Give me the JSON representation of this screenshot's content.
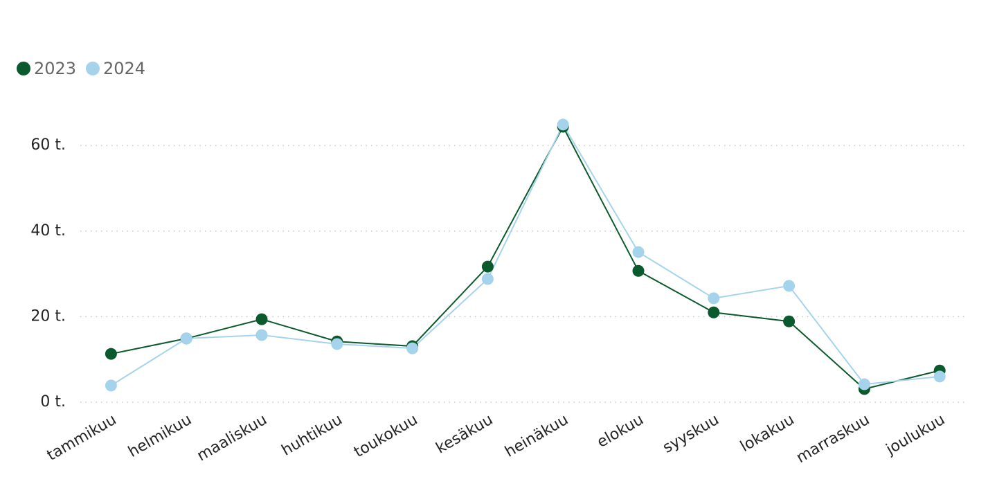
{
  "chart_data": {
    "type": "line",
    "categories": [
      "tammikuu",
      "helmikuu",
      "maaliskuu",
      "huhtikuu",
      "toukokuu",
      "kesäkuu",
      "heinäkuu",
      "elokuu",
      "syyskuu",
      "lokakuu",
      "marraskuu",
      "joulukuu"
    ],
    "series": [
      {
        "name": "2023",
        "color": "#0b5a2e",
        "values": [
          11.3,
          14.9,
          19.4,
          14.2,
          13.1,
          31.7,
          64.4,
          30.7,
          21.0,
          18.9,
          3.1,
          7.4
        ]
      },
      {
        "name": "2024",
        "color": "#a6d3ec",
        "values": [
          3.9,
          14.9,
          15.7,
          13.6,
          12.6,
          28.8,
          64.9,
          35.1,
          24.3,
          27.2,
          4.2,
          6.0
        ]
      }
    ],
    "ylim": [
      0,
      70
    ],
    "yticks": [
      {
        "value": 0,
        "label": "0 t."
      },
      {
        "value": 20,
        "label": "20 t."
      },
      {
        "value": 40,
        "label": "40 t."
      },
      {
        "value": 60,
        "label": "60 t."
      }
    ],
    "grid": true,
    "legend": "top-left"
  }
}
